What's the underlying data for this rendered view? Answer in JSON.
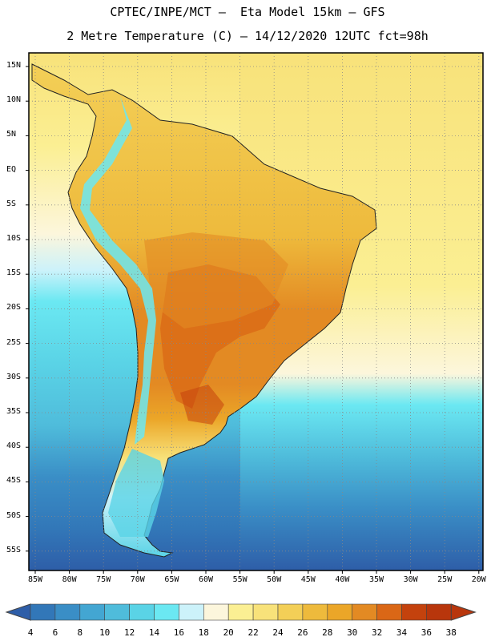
{
  "title_line1": "CPTEC/INPE/MCT –  Eta Model 15km – GFS",
  "title_line2": "2 Metre Temperature (C) – 14/12/2020 12UTC fct=98h",
  "lat_labels": [
    "15N",
    "10N",
    "5N",
    "EQ",
    "5S",
    "10S",
    "15S",
    "20S",
    "25S",
    "30S",
    "35S",
    "40S",
    "45S",
    "50S",
    "55S"
  ],
  "lon_labels": [
    "85W",
    "80W",
    "75W",
    "70W",
    "65W",
    "60W",
    "55W",
    "50W",
    "45W",
    "40W",
    "35W",
    "30W",
    "25W",
    "20W"
  ],
  "colorbar": {
    "labels": [
      "4",
      "6",
      "8",
      "10",
      "12",
      "14",
      "16",
      "18",
      "20",
      "22",
      "24",
      "26",
      "28",
      "30",
      "32",
      "34",
      "36",
      "38"
    ],
    "colors": [
      "#2e5ea8",
      "#3277b8",
      "#3a8ec6",
      "#43a6d2",
      "#4fbcdb",
      "#5ad3e6",
      "#6be8f2",
      "#ccf2fa",
      "#fcf6dc",
      "#fbef93",
      "#f8e27a",
      "#f3cf57",
      "#eeba3c",
      "#eba628",
      "#e38a23",
      "#da6716",
      "#c4420d",
      "#b8360c"
    ]
  },
  "map_colors": {
    "ocean_warm": "#fbe88a",
    "ocean_mid": "#fdf6d6",
    "ocean_cool": "#6be8f2",
    "ocean_cold": "#43a6d2",
    "ocean_coldest": "#2e5ea8",
    "land_hot": "#e38a23",
    "land_warm": "#eba628",
    "andes": "#6be8f2"
  }
}
